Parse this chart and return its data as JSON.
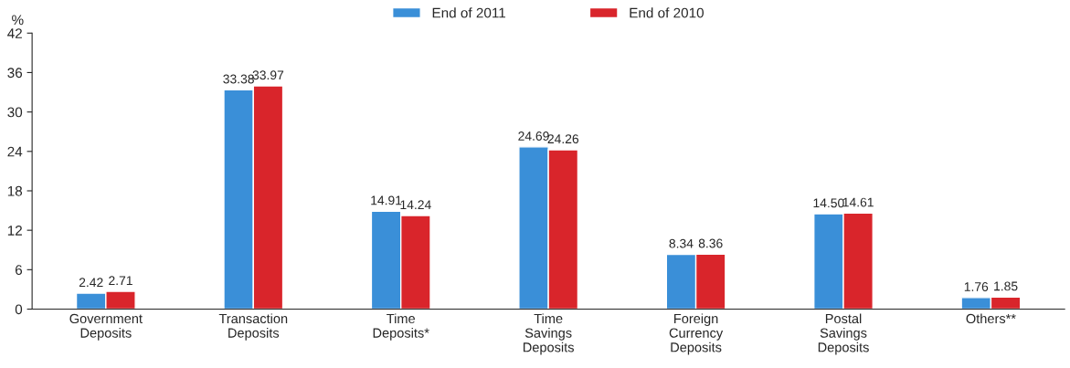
{
  "chart_data": {
    "type": "bar",
    "ylabel": "%",
    "categories": [
      "Government\nDeposits",
      "Transaction\nDeposits",
      "Time\nDeposits*",
      "Time\nSavings\nDeposits",
      "Foreign\nCurrency\nDeposits",
      "Postal\nSavings\nDeposits",
      "Others**"
    ],
    "series": [
      {
        "name": "End of 2011",
        "color": "#3a8fd8",
        "values": [
          2.42,
          33.38,
          14.91,
          24.69,
          8.34,
          14.5,
          1.76
        ],
        "value_labels": [
          "2.42",
          "33.38",
          "14.91",
          "24.69",
          "8.34",
          "14.50",
          "1.76"
        ]
      },
      {
        "name": "End of 2010",
        "color": "#d9252b",
        "values": [
          2.71,
          33.97,
          14.24,
          24.26,
          8.36,
          14.61,
          1.85
        ],
        "value_labels": [
          "2.71",
          "33.97",
          "14.24",
          "24.26",
          "8.36",
          "14.61",
          "1.85"
        ]
      }
    ],
    "ylim": [
      0,
      42
    ],
    "yticks": [
      0,
      6,
      12,
      18,
      24,
      30,
      36,
      42
    ],
    "grid": false,
    "legend": "top"
  }
}
